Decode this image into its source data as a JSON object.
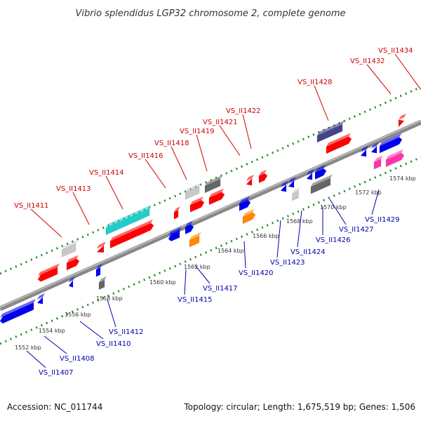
{
  "title": "Vibrio splendidus LGP32 chromosome 2, complete genome",
  "footer": {
    "accession": "Accession: NC_011744",
    "summary": "Topology: circular; Length: 1,675,519 bp; Genes: 1,506"
  },
  "colors": {
    "label_top": "#cc0000",
    "label_bottom": "#0000aa",
    "backbone": "#888888",
    "tick": "#228b22",
    "feature": {
      "red": "#ff0000",
      "blue": "#0000ee",
      "cyan": "#22cccc",
      "gray_light": "#c8c8c8",
      "gray_dark": "#666666",
      "orange": "#ff8800",
      "navy": "#44448a",
      "pink": "#ff33aa"
    }
  },
  "kbp_ticks": [
    "1552 kbp",
    "1554 kbp",
    "1556 kbp",
    "1558 kbp",
    "1560 kbp",
    "1562 kbp",
    "1564 kbp",
    "1566 kbp",
    "1568 kbp",
    "1570 kbp",
    "1572 kbp",
    "1574 kbp"
  ],
  "top_labels": [
    "VS_II1411",
    "VS_II1413",
    "VS_II1414",
    "VS_II1416",
    "VS_II1418",
    "VS_II1419",
    "VS_II1421",
    "VS_II1422",
    "VS_II1428",
    "VS_II1432",
    "VS_II1434"
  ],
  "bottom_labels": [
    "VS_II1407",
    "VS_II1408",
    "VS_II1410",
    "VS_II1412",
    "VS_II1415",
    "VS_II1417",
    "VS_II1420",
    "VS_II1423",
    "VS_II1424",
    "VS_II1426",
    "VS_II1427",
    "VS_II1429"
  ]
}
